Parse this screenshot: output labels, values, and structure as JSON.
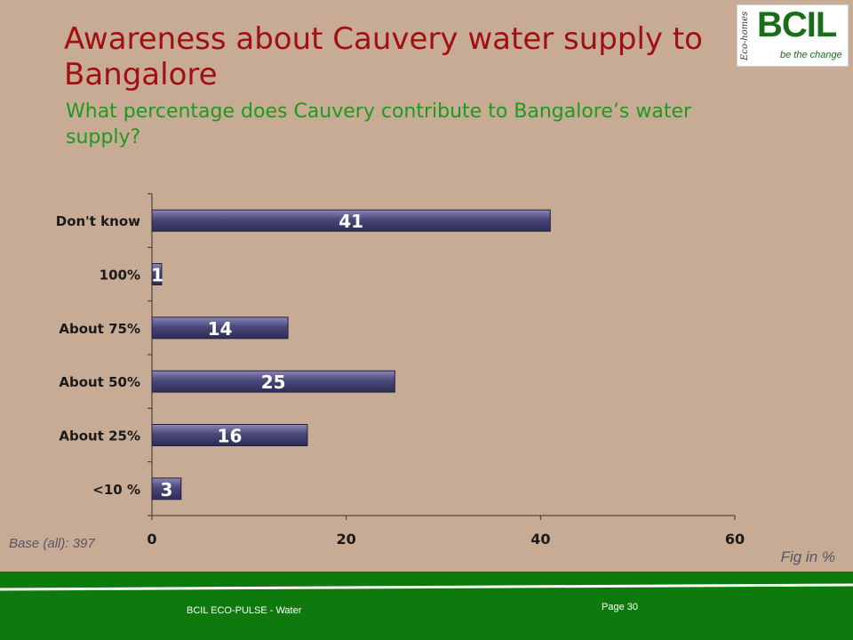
{
  "slide": {
    "title": "Awareness about Cauvery water supply to Bangalore",
    "subtitle": "What percentage does Cauvery contribute to Bangalore’s water supply?",
    "base_note": "Base (all): 397",
    "unit_note": "Fig in %",
    "footer_text": "BCIL ECO-PULSE - Water",
    "page_label": "Page 30"
  },
  "logo": {
    "side_text": "Eco-homes",
    "mark": "BCIL",
    "tagline": "be the change"
  },
  "colors": {
    "background": "#c8ab95",
    "title": "#a01010",
    "subtitle": "#1e9a1e",
    "bar": "#4a4878",
    "footer": "#0e7a0e"
  },
  "chart_data": {
    "type": "bar",
    "orientation": "horizontal",
    "categories": [
      "Don't know",
      "100%",
      "About 75%",
      "About 50%",
      "About 25%",
      "<10 %"
    ],
    "values": [
      41,
      1,
      14,
      25,
      16,
      3
    ],
    "xlim": [
      0,
      60
    ],
    "xticks": [
      0,
      20,
      40,
      60
    ],
    "grid": false
  }
}
